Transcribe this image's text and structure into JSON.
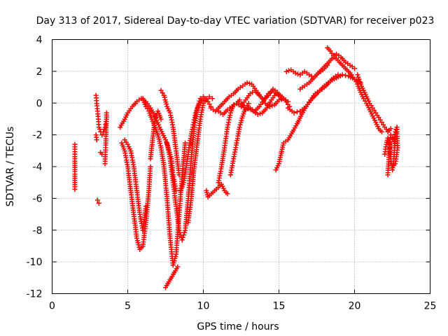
{
  "chart_data": {
    "type": "scatter",
    "title": "Day 313 of 2017, Sidereal Day-to-day VTEC variation (SDTVAR) for receiver p023",
    "xlabel": "GPS time / hours",
    "ylabel": "SDTVAR / TECUs",
    "xlim": [
      0,
      25
    ],
    "ylim": [
      -12,
      4
    ],
    "xticks": [
      0,
      5,
      10,
      15,
      20,
      25
    ],
    "yticks": [
      -12,
      -10,
      -8,
      -6,
      -4,
      -2,
      0,
      2,
      4
    ],
    "xtick_labels": [
      "0",
      "5",
      "10",
      "15",
      "20",
      "25"
    ],
    "ytick_labels": [
      "-12",
      "-10",
      "-8",
      "-6",
      "-4",
      "-2",
      "0",
      "2",
      "4"
    ],
    "grid": true,
    "marker": "+",
    "color": "#ff0000",
    "series": [
      {
        "name": "s1",
        "x": [
          1.5,
          1.5,
          1.5,
          1.5
        ],
        "y": [
          -2.6,
          -3.5,
          -5.0,
          -5.4
        ]
      },
      {
        "name": "s2",
        "x": [
          2.9,
          2.95,
          3.0,
          3.05,
          3.1,
          3.2,
          3.3,
          3.4,
          3.5,
          3.6,
          3.6,
          3.55,
          3.5
        ],
        "y": [
          0.5,
          0.0,
          -0.5,
          -1.0,
          -1.5,
          -1.8,
          -2.0,
          -1.8,
          -1.5,
          -1.0,
          -0.6,
          -2.5,
          -3.8
        ]
      },
      {
        "name": "s3",
        "x": [
          2.9,
          2.95,
          3.0,
          3.1,
          3.2,
          3.3
        ],
        "y": [
          -2.0,
          -2.3,
          -6.1,
          -6.3,
          -3.1,
          -3.2
        ]
      },
      {
        "name": "s4",
        "x": [
          4.5,
          4.8,
          5.0,
          5.3,
          5.6,
          5.9,
          6.2,
          6.5,
          6.8,
          7.1,
          7.5,
          7.9,
          8.0,
          8.2
        ],
        "y": [
          -1.5,
          -1.0,
          -0.6,
          -0.2,
          0.1,
          0.3,
          0.1,
          -0.3,
          -0.8,
          -1.5,
          -2.3,
          -3.5,
          -4.5,
          -5.5
        ]
      },
      {
        "name": "s5",
        "x": [
          4.6,
          4.8,
          5.0,
          5.2,
          5.4,
          5.6,
          5.8,
          6.0,
          6.2,
          6.4,
          6.5
        ],
        "y": [
          -2.5,
          -3.0,
          -4.0,
          -5.5,
          -7.0,
          -8.5,
          -9.2,
          -9.0,
          -7.5,
          -5.5,
          -4.0
        ]
      },
      {
        "name": "s6",
        "x": [
          4.8,
          5.0,
          5.2,
          5.4,
          5.6,
          5.8,
          6.0,
          6.2,
          6.5,
          6.8,
          7.0,
          7.2
        ],
        "y": [
          -2.3,
          -2.6,
          -3.0,
          -4.0,
          -5.5,
          -7.0,
          -8.0,
          -6.5,
          -3.5,
          -1.0,
          -0.5,
          -1.0
        ]
      },
      {
        "name": "s7",
        "x": [
          6.0,
          6.2,
          6.4,
          6.6,
          6.8,
          7.0,
          7.2,
          7.4,
          7.6,
          7.8,
          8.0,
          8.2,
          8.4,
          8.6,
          8.8
        ],
        "y": [
          0.3,
          -0.2,
          -0.5,
          -1.0,
          -1.5,
          -2.0,
          -2.8,
          -4.0,
          -6.0,
          -8.5,
          -10.2,
          -9.5,
          -7.0,
          -4.5,
          -2.5
        ]
      },
      {
        "name": "s8",
        "x": [
          7.6,
          7.8,
          8.0,
          8.2,
          8.4,
          8.6,
          8.8,
          9.0,
          9.2,
          9.4,
          9.6,
          9.8,
          10.0
        ],
        "y": [
          -2.5,
          -3.5,
          -5.0,
          -6.5,
          -8.0,
          -8.6,
          -8.0,
          -6.0,
          -3.5,
          -1.5,
          -0.3,
          0.3,
          0.4
        ]
      },
      {
        "name": "s9",
        "x": [
          8.5,
          8.7,
          8.9,
          9.1,
          9.3,
          9.5,
          9.7,
          9.9,
          10.1,
          10.3,
          10.5
        ],
        "y": [
          -5.5,
          -5.0,
          -3.8,
          -2.5,
          -1.5,
          -0.6,
          -0.1,
          0.2,
          0.3,
          0.1,
          -0.2
        ]
      },
      {
        "name": "s10",
        "x": [
          9.0,
          9.2,
          9.4,
          9.6,
          9.8,
          10.0,
          10.2,
          10.4,
          10.6
        ],
        "y": [
          -7.5,
          -6.0,
          -4.0,
          -2.5,
          -1.0,
          0.0,
          0.3,
          0.4,
          0.3
        ]
      },
      {
        "name": "s11",
        "x": [
          7.2,
          7.4,
          7.6,
          7.8,
          8.0,
          8.2,
          8.4
        ],
        "y": [
          0.8,
          0.5,
          -0.2,
          -0.6,
          -1.5,
          -3.0,
          -4.5
        ]
      },
      {
        "name": "s12",
        "x": [
          7.5,
          8.3,
          10.2,
          10.3,
          11.2,
          11.4,
          11.6
        ],
        "y": [
          -11.6,
          -10.3,
          -5.5,
          -5.9,
          -5.1,
          -5.5,
          -5.7
        ]
      },
      {
        "name": "s13",
        "x": [
          10.5,
          10.8,
          11.1,
          11.4,
          11.7,
          12.0,
          12.3,
          12.6,
          12.9,
          13.2,
          13.5,
          13.8,
          14.1,
          14.4,
          14.7,
          15.0,
          15.3,
          15.6
        ],
        "y": [
          -0.3,
          -0.5,
          -0.2,
          0.1,
          0.4,
          0.6,
          0.9,
          1.1,
          1.3,
          1.2,
          0.8,
          0.4,
          0.0,
          -0.2,
          -0.1,
          0.2,
          0.3,
          0.1
        ]
      },
      {
        "name": "s14",
        "x": [
          11.0,
          11.3,
          11.6,
          11.9,
          12.2,
          12.5,
          12.8,
          13.1,
          13.4,
          13.7,
          14.0,
          14.3,
          14.6,
          14.9,
          15.2
        ],
        "y": [
          -0.5,
          -0.7,
          -0.4,
          -0.2,
          0.0,
          -0.2,
          0.2,
          0.6,
          0.8,
          0.5,
          0.2,
          0.6,
          0.8,
          0.6,
          0.3
        ]
      },
      {
        "name": "s15",
        "x": [
          11.0,
          11.2,
          11.4,
          11.6,
          11.8,
          12.0,
          12.2,
          12.4
        ],
        "y": [
          -5.0,
          -4.0,
          -2.8,
          -1.5,
          -0.6,
          -0.1,
          0.0,
          0.2
        ]
      },
      {
        "name": "s16",
        "x": [
          11.8,
          12.0,
          12.2,
          12.4,
          12.6,
          12.8,
          13.0
        ],
        "y": [
          -4.5,
          -3.5,
          -2.5,
          -1.5,
          -0.8,
          -0.3,
          0.0
        ]
      },
      {
        "name": "s17",
        "x": [
          12.5,
          12.8,
          13.1,
          13.4,
          13.7,
          14.0,
          14.3,
          14.6,
          14.9
        ],
        "y": [
          0.0,
          -0.4,
          -0.3,
          -0.5,
          -0.2,
          0.2,
          0.5,
          0.9,
          0.7
        ]
      },
      {
        "name": "s18",
        "x": [
          13.0,
          13.3,
          13.6,
          13.9,
          14.2,
          14.5,
          14.8,
          15.1,
          15.4,
          15.7
        ],
        "y": [
          -0.3,
          -0.5,
          -0.7,
          -0.6,
          -0.3,
          0.2,
          0.6,
          0.5,
          0.2,
          -0.2
        ]
      },
      {
        "name": "s19",
        "x": [
          14.8,
          15.0,
          15.3,
          15.6,
          15.9,
          16.2,
          16.5,
          16.8,
          17.1,
          17.4,
          17.7,
          18.0,
          18.3,
          18.6,
          18.9
        ],
        "y": [
          -4.2,
          -3.8,
          -2.5,
          -2.3,
          -1.8,
          -1.3,
          -0.7,
          -0.2,
          0.2,
          0.6,
          0.8,
          1.0,
          1.3,
          1.6,
          1.8
        ]
      },
      {
        "name": "s20",
        "x": [
          15.6,
          16.0,
          16.4,
          16.8,
          17.2,
          17.6,
          18.0,
          18.4,
          18.8,
          19.2,
          19.6,
          20.0,
          20.4
        ],
        "y": [
          -0.3,
          -0.6,
          -0.5,
          -0.2,
          0.3,
          0.7,
          1.1,
          1.4,
          1.6,
          1.8,
          1.7,
          1.5,
          1.3
        ]
      },
      {
        "name": "s21",
        "x": [
          15.5,
          15.8,
          16.1,
          16.4,
          16.7,
          17.0,
          17.3,
          17.6,
          17.9,
          18.2
        ],
        "y": [
          2.0,
          2.1,
          1.9,
          1.8,
          2.0,
          1.8,
          1.6,
          1.9,
          2.1,
          2.4
        ]
      },
      {
        "name": "s22",
        "x": [
          16.4,
          16.7,
          17.0,
          17.3,
          17.6,
          17.9,
          18.2,
          18.5,
          18.8,
          19.1,
          19.4,
          19.7,
          20.0
        ],
        "y": [
          0.9,
          1.1,
          1.3,
          1.6,
          1.9,
          2.2,
          2.5,
          2.8,
          3.1,
          2.9,
          2.6,
          2.4,
          2.2
        ]
      },
      {
        "name": "s23",
        "x": [
          18.2,
          18.4,
          18.6,
          18.8,
          19.0,
          19.2,
          19.4,
          19.6,
          19.8,
          20.0,
          20.2,
          20.4,
          20.6,
          20.8,
          21.0,
          21.2,
          21.4,
          21.6,
          21.8
        ],
        "y": [
          3.5,
          3.3,
          3.0,
          2.8,
          2.6,
          2.4,
          2.2,
          2.0,
          1.8,
          1.5,
          1.2,
          0.7,
          0.3,
          0.0,
          -0.4,
          -0.8,
          -1.2,
          -1.6,
          -1.8
        ]
      },
      {
        "name": "s24",
        "x": [
          20.2,
          20.4,
          20.6,
          20.8,
          21.0,
          21.2,
          21.4,
          21.6,
          21.8,
          22.0,
          22.2,
          22.4
        ],
        "y": [
          1.8,
          1.2,
          0.8,
          0.4,
          0.0,
          -0.3,
          -0.6,
          -0.9,
          -1.2,
          -1.5,
          -1.8,
          -1.6
        ]
      },
      {
        "name": "s25",
        "x": [
          22.0,
          22.1,
          22.2,
          22.3,
          22.4,
          22.5,
          22.6,
          22.7,
          22.8,
          22.85,
          22.7,
          22.6
        ],
        "y": [
          -3.2,
          -2.6,
          -2.2,
          -2.5,
          -3.5,
          -4.2,
          -3.5,
          -2.0,
          -1.5,
          -2.8,
          -3.8,
          -3.9
        ]
      },
      {
        "name": "s26",
        "x": [
          22.2,
          22.3,
          22.4,
          22.5,
          22.6,
          22.7,
          22.8
        ],
        "y": [
          -4.5,
          -3.0,
          -2.0,
          -2.2,
          -2.4,
          -1.8,
          -1.5
        ]
      }
    ]
  }
}
